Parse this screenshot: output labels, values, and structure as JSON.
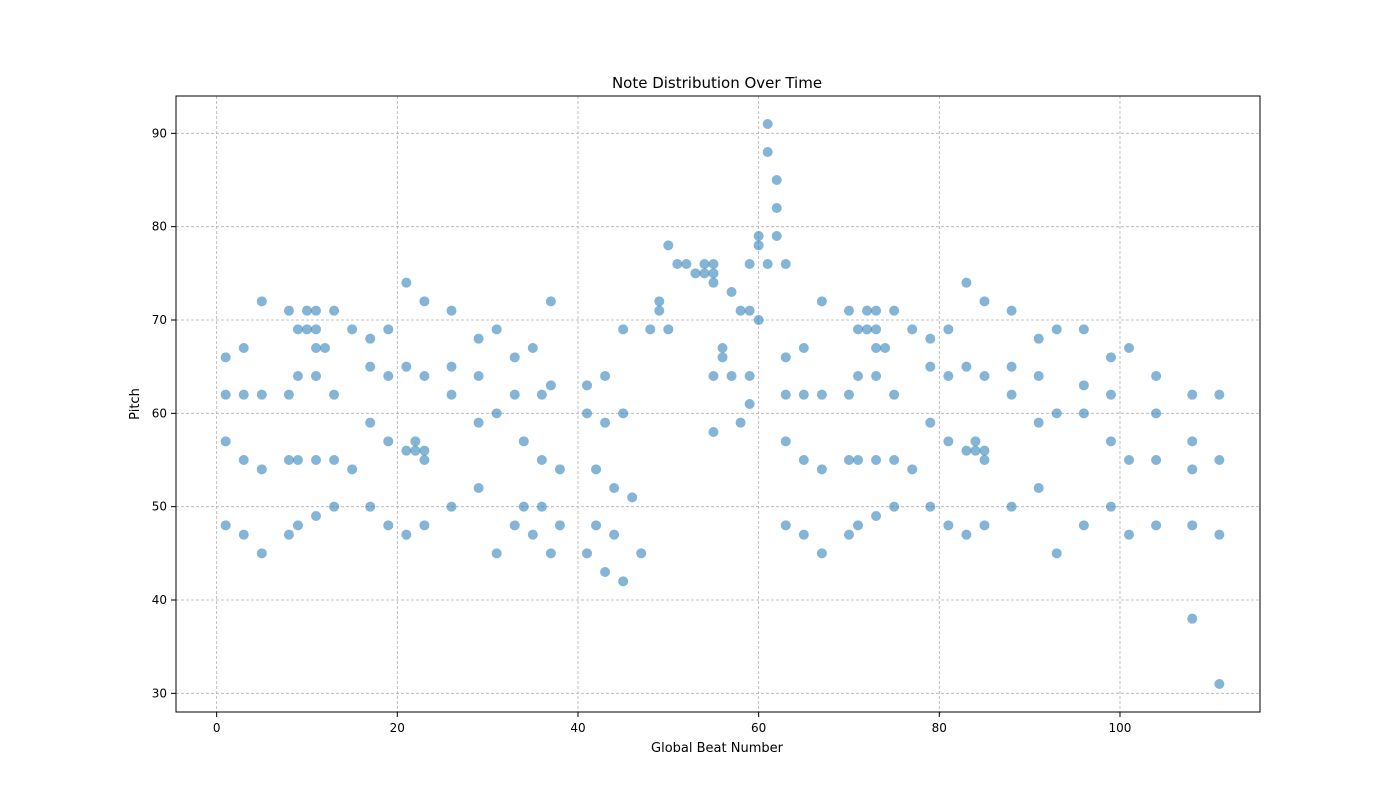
{
  "chart_data": {
    "type": "scatter",
    "title": "Note Distribution Over Time",
    "xlabel": "Global Beat Number",
    "ylabel": "Pitch",
    "xlim": [
      -4.5,
      115.5
    ],
    "ylim": [
      28,
      94
    ],
    "xticks": [
      0,
      20,
      40,
      60,
      80,
      100
    ],
    "yticks": [
      30,
      40,
      50,
      60,
      70,
      80,
      90
    ],
    "grid": true,
    "marker_color": "#1f77b4",
    "marker_alpha": 0.55,
    "points": [
      [
        1,
        66
      ],
      [
        1,
        62
      ],
      [
        1,
        57
      ],
      [
        1,
        48
      ],
      [
        3,
        67
      ],
      [
        3,
        62
      ],
      [
        3,
        55
      ],
      [
        3,
        47
      ],
      [
        5,
        72
      ],
      [
        5,
        62
      ],
      [
        5,
        54
      ],
      [
        5,
        45
      ],
      [
        8,
        71
      ],
      [
        8,
        62
      ],
      [
        8,
        55
      ],
      [
        8,
        47
      ],
      [
        9,
        69
      ],
      [
        9,
        64
      ],
      [
        9,
        55
      ],
      [
        9,
        48
      ],
      [
        10,
        71
      ],
      [
        10,
        69
      ],
      [
        11,
        71
      ],
      [
        11,
        69
      ],
      [
        11,
        67
      ],
      [
        11,
        64
      ],
      [
        11,
        55
      ],
      [
        11,
        49
      ],
      [
        12,
        67
      ],
      [
        13,
        71
      ],
      [
        13,
        62
      ],
      [
        13,
        55
      ],
      [
        13,
        50
      ],
      [
        15,
        69
      ],
      [
        15,
        54
      ],
      [
        17,
        68
      ],
      [
        17,
        65
      ],
      [
        17,
        59
      ],
      [
        17,
        50
      ],
      [
        19,
        69
      ],
      [
        19,
        64
      ],
      [
        19,
        57
      ],
      [
        19,
        48
      ],
      [
        21,
        74
      ],
      [
        21,
        65
      ],
      [
        21,
        56
      ],
      [
        21,
        47
      ],
      [
        22,
        57
      ],
      [
        22,
        56
      ],
      [
        23,
        72
      ],
      [
        23,
        64
      ],
      [
        23,
        56
      ],
      [
        23,
        55
      ],
      [
        23,
        48
      ],
      [
        26,
        71
      ],
      [
        26,
        65
      ],
      [
        26,
        62
      ],
      [
        26,
        50
      ],
      [
        29,
        68
      ],
      [
        29,
        64
      ],
      [
        29,
        59
      ],
      [
        29,
        52
      ],
      [
        31,
        69
      ],
      [
        31,
        60
      ],
      [
        31,
        45
      ],
      [
        33,
        66
      ],
      [
        33,
        62
      ],
      [
        33,
        48
      ],
      [
        34,
        57
      ],
      [
        34,
        50
      ],
      [
        35,
        67
      ],
      [
        35,
        47
      ],
      [
        36,
        62
      ],
      [
        36,
        55
      ],
      [
        36,
        50
      ],
      [
        37,
        72
      ],
      [
        37,
        63
      ],
      [
        37,
        45
      ],
      [
        38,
        54
      ],
      [
        38,
        48
      ],
      [
        41,
        63
      ],
      [
        41,
        60
      ],
      [
        41,
        45
      ],
      [
        42,
        54
      ],
      [
        42,
        48
      ],
      [
        43,
        64
      ],
      [
        43,
        59
      ],
      [
        43,
        43
      ],
      [
        44,
        52
      ],
      [
        44,
        47
      ],
      [
        45,
        69
      ],
      [
        45,
        60
      ],
      [
        45,
        42
      ],
      [
        46,
        51
      ],
      [
        47,
        45
      ],
      [
        48,
        69
      ],
      [
        49,
        72
      ],
      [
        49,
        71
      ],
      [
        50,
        78
      ],
      [
        50,
        69
      ],
      [
        51,
        76
      ],
      [
        52,
        76
      ],
      [
        53,
        75
      ],
      [
        54,
        76
      ],
      [
        54,
        75
      ],
      [
        55,
        76
      ],
      [
        55,
        75
      ],
      [
        55,
        74
      ],
      [
        55,
        64
      ],
      [
        55,
        58
      ],
      [
        56,
        67
      ],
      [
        56,
        66
      ],
      [
        57,
        73
      ],
      [
        57,
        64
      ],
      [
        58,
        71
      ],
      [
        58,
        59
      ],
      [
        59,
        76
      ],
      [
        59,
        71
      ],
      [
        59,
        64
      ],
      [
        59,
        61
      ],
      [
        60,
        79
      ],
      [
        60,
        78
      ],
      [
        60,
        70
      ],
      [
        61,
        91
      ],
      [
        61,
        88
      ],
      [
        61,
        76
      ],
      [
        62,
        85
      ],
      [
        62,
        82
      ],
      [
        62,
        79
      ],
      [
        63,
        76
      ],
      [
        63,
        66
      ],
      [
        63,
        62
      ],
      [
        63,
        57
      ],
      [
        63,
        48
      ],
      [
        65,
        67
      ],
      [
        65,
        62
      ],
      [
        65,
        55
      ],
      [
        65,
        47
      ],
      [
        67,
        72
      ],
      [
        67,
        62
      ],
      [
        67,
        54
      ],
      [
        67,
        45
      ],
      [
        70,
        71
      ],
      [
        70,
        62
      ],
      [
        70,
        55
      ],
      [
        70,
        47
      ],
      [
        71,
        69
      ],
      [
        71,
        64
      ],
      [
        71,
        55
      ],
      [
        71,
        48
      ],
      [
        72,
        71
      ],
      [
        72,
        69
      ],
      [
        73,
        71
      ],
      [
        73,
        69
      ],
      [
        73,
        67
      ],
      [
        73,
        64
      ],
      [
        73,
        55
      ],
      [
        73,
        49
      ],
      [
        74,
        67
      ],
      [
        75,
        71
      ],
      [
        75,
        62
      ],
      [
        75,
        55
      ],
      [
        75,
        50
      ],
      [
        77,
        69
      ],
      [
        77,
        54
      ],
      [
        79,
        68
      ],
      [
        79,
        65
      ],
      [
        79,
        59
      ],
      [
        79,
        50
      ],
      [
        81,
        69
      ],
      [
        81,
        64
      ],
      [
        81,
        57
      ],
      [
        81,
        48
      ],
      [
        83,
        74
      ],
      [
        83,
        65
      ],
      [
        83,
        56
      ],
      [
        83,
        47
      ],
      [
        84,
        57
      ],
      [
        84,
        56
      ],
      [
        85,
        72
      ],
      [
        85,
        64
      ],
      [
        85,
        56
      ],
      [
        85,
        55
      ],
      [
        85,
        48
      ],
      [
        88,
        71
      ],
      [
        88,
        65
      ],
      [
        88,
        62
      ],
      [
        88,
        50
      ],
      [
        91,
        68
      ],
      [
        91,
        64
      ],
      [
        91,
        59
      ],
      [
        91,
        52
      ],
      [
        93,
        69
      ],
      [
        93,
        60
      ],
      [
        93,
        45
      ],
      [
        96,
        69
      ],
      [
        96,
        63
      ],
      [
        96,
        60
      ],
      [
        96,
        48
      ],
      [
        99,
        66
      ],
      [
        99,
        62
      ],
      [
        99,
        57
      ],
      [
        99,
        50
      ],
      [
        101,
        67
      ],
      [
        101,
        55
      ],
      [
        101,
        47
      ],
      [
        104,
        64
      ],
      [
        104,
        60
      ],
      [
        104,
        55
      ],
      [
        104,
        48
      ],
      [
        108,
        62
      ],
      [
        108,
        57
      ],
      [
        108,
        54
      ],
      [
        108,
        48
      ],
      [
        108,
        38
      ],
      [
        111,
        62
      ],
      [
        111,
        55
      ],
      [
        111,
        47
      ],
      [
        111,
        31
      ]
    ]
  }
}
